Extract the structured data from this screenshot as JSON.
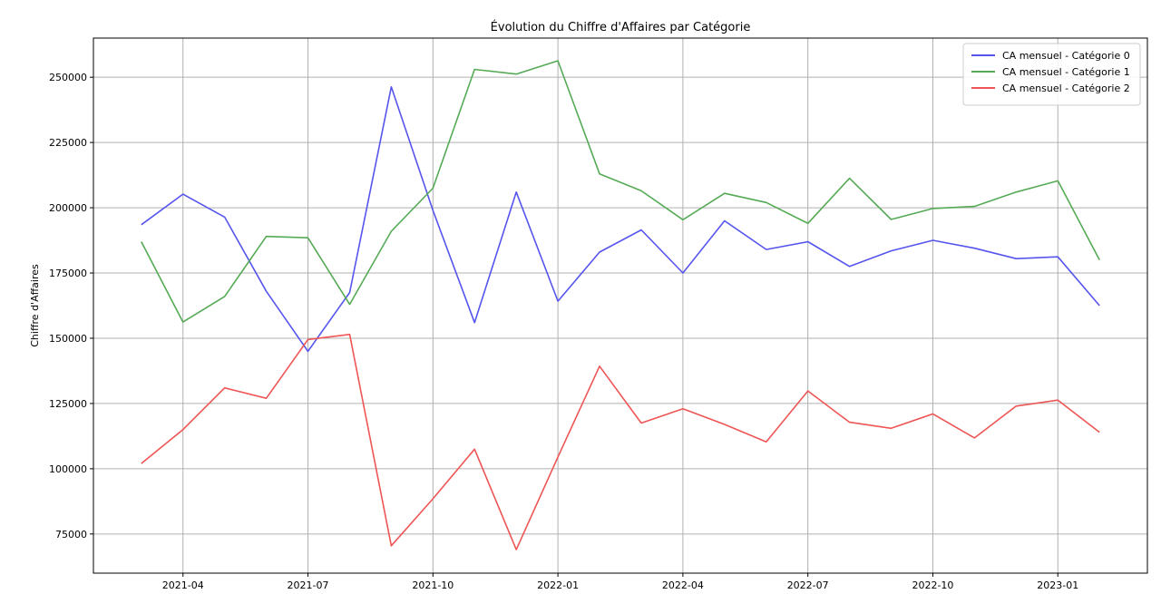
{
  "chart_data": {
    "type": "line",
    "title": "Évolution du Chiffre d'Affaires par Catégorie",
    "xlabel": "",
    "ylabel": "Chiffre d'Affaires",
    "x": [
      "2021-03",
      "2021-04",
      "2021-05",
      "2021-06",
      "2021-07",
      "2021-08",
      "2021-09",
      "2021-10",
      "2021-11",
      "2021-12",
      "2022-01",
      "2022-02",
      "2022-03",
      "2022-04",
      "2022-05",
      "2022-06",
      "2022-07",
      "2022-08",
      "2022-09",
      "2022-10",
      "2022-11",
      "2022-12",
      "2023-01",
      "2023-02"
    ],
    "x_ticks": [
      "2021-04",
      "2021-07",
      "2021-10",
      "2022-01",
      "2022-04",
      "2022-07",
      "2022-10",
      "2023-01"
    ],
    "y_ticks": [
      75000,
      100000,
      125000,
      150000,
      175000,
      200000,
      225000,
      250000
    ],
    "ylim": [
      60000,
      265000
    ],
    "grid": true,
    "legend_position": "top-right",
    "series": [
      {
        "name": "CA mensuel - Catégorie 0",
        "color": "#5555ee",
        "values": [
          193500,
          205200,
          196400,
          168000,
          145000,
          167500,
          246300,
          199000,
          156000,
          206000,
          164200,
          183000,
          191500,
          175000,
          195000,
          184000,
          187000,
          177500,
          183500,
          187500,
          184500,
          180500,
          181200,
          162500
        ]
      },
      {
        "name": "CA mensuel - Catégorie 1",
        "color": "#55aa55",
        "values": [
          187000,
          156200,
          166000,
          189000,
          188500,
          163000,
          191000,
          207500,
          253000,
          251200,
          256300,
          213000,
          206500,
          195400,
          205500,
          202000,
          194000,
          211300,
          195500,
          199700,
          200500,
          206000,
          210300,
          180000
        ]
      },
      {
        "name": "CA mensuel - Catégorie 2",
        "color": "#ee5555",
        "values": [
          102000,
          115000,
          131000,
          127000,
          149500,
          151500,
          70500,
          88500,
          107500,
          69000,
          104500,
          139300,
          117500,
          123000,
          117000,
          110300,
          129800,
          117800,
          115500,
          121000,
          111800,
          124000,
          126300,
          114000
        ]
      }
    ]
  }
}
